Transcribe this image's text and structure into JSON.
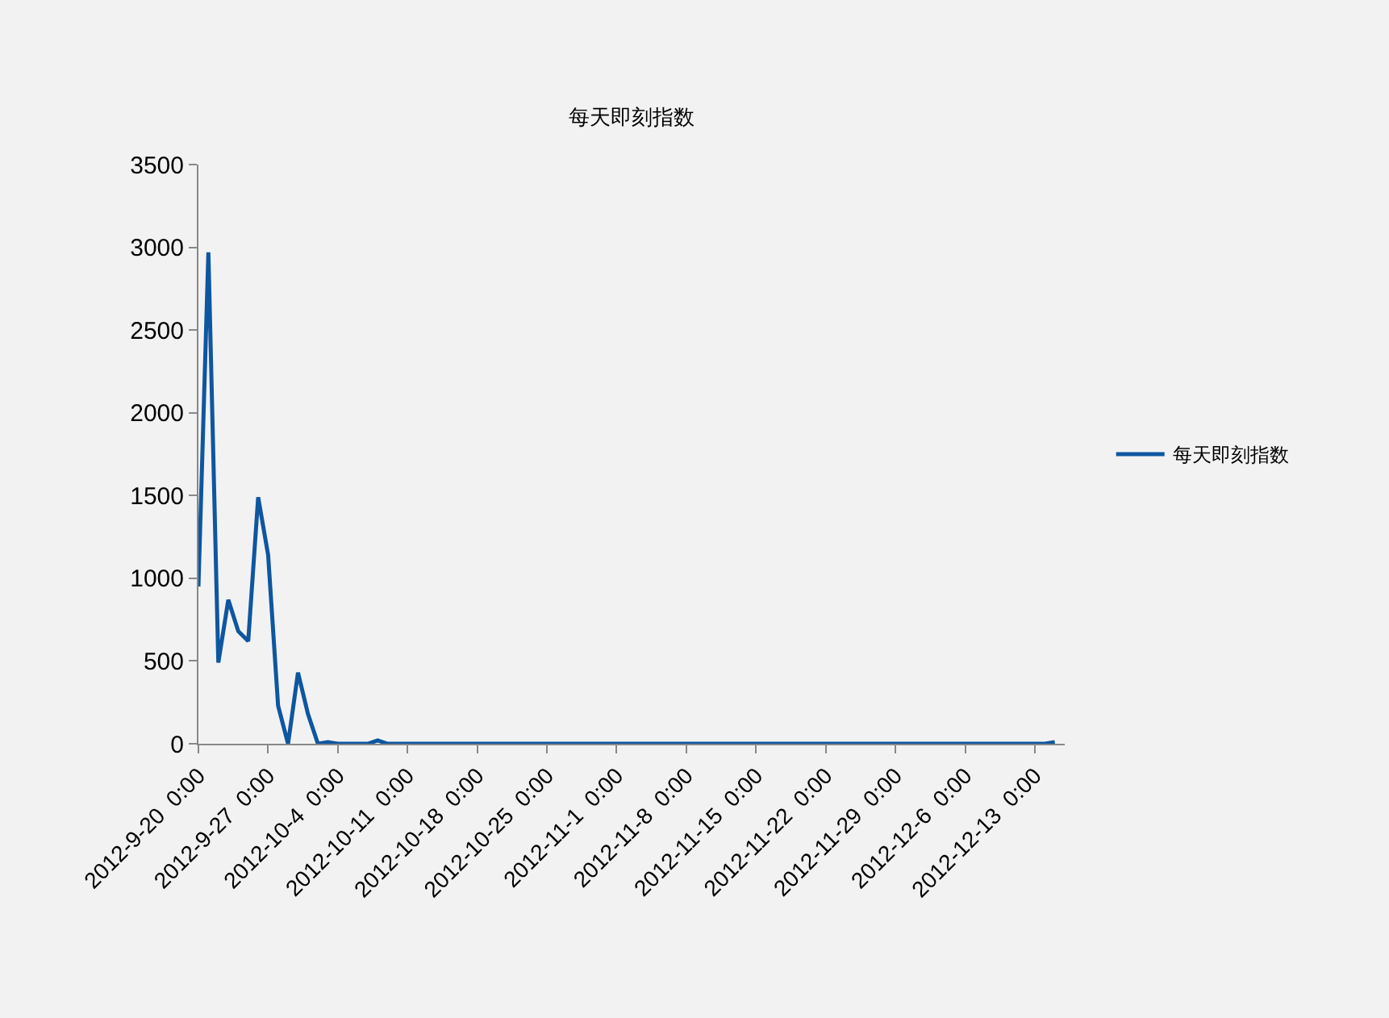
{
  "chart_data": {
    "type": "line",
    "title": "每天即刻指数",
    "x": [
      "2012-09-20",
      "2012-09-21",
      "2012-09-22",
      "2012-09-23",
      "2012-09-24",
      "2012-09-25",
      "2012-09-26",
      "2012-09-27",
      "2012-09-28",
      "2012-09-29",
      "2012-09-30",
      "2012-10-01",
      "2012-10-02",
      "2012-10-03",
      "2012-10-04",
      "2012-10-07",
      "2012-10-08",
      "2012-10-09",
      "2012-12-14",
      "2012-12-15"
    ],
    "series": [
      {
        "name": "每天即刻指数",
        "color": "#0e56a0",
        "values": [
          950,
          2970,
          490,
          870,
          680,
          620,
          1490,
          1140,
          230,
          0,
          430,
          180,
          0,
          10,
          0,
          0,
          20,
          0,
          0,
          10
        ]
      }
    ],
    "xlim": [
      "2012-09-20",
      "2012-12-16"
    ],
    "xticks": [
      {
        "value": "2012-09-20",
        "label": "2012-9-20  0:00"
      },
      {
        "value": "2012-09-27",
        "label": "2012-9-27  0:00"
      },
      {
        "value": "2012-10-04",
        "label": "2012-10-4  0:00"
      },
      {
        "value": "2012-10-11",
        "label": "2012-10-11  0:00"
      },
      {
        "value": "2012-10-18",
        "label": "2012-10-18  0:00"
      },
      {
        "value": "2012-10-25",
        "label": "2012-10-25  0:00"
      },
      {
        "value": "2012-11-01",
        "label": "2012-11-1  0:00"
      },
      {
        "value": "2012-11-08",
        "label": "2012-11-8  0:00"
      },
      {
        "value": "2012-11-15",
        "label": "2012-11-15  0:00"
      },
      {
        "value": "2012-11-22",
        "label": "2012-11-22  0:00"
      },
      {
        "value": "2012-11-29",
        "label": "2012-11-29  0:00"
      },
      {
        "value": "2012-12-06",
        "label": "2012-12-6  0:00"
      },
      {
        "value": "2012-12-13",
        "label": "2012-12-13  0:00"
      }
    ],
    "ylim": [
      0,
      3500
    ],
    "yticks": [
      0,
      500,
      1000,
      1500,
      2000,
      2500,
      3000,
      3500
    ],
    "grid": false,
    "legend": "right",
    "marker": "none",
    "line_style": "solid"
  }
}
